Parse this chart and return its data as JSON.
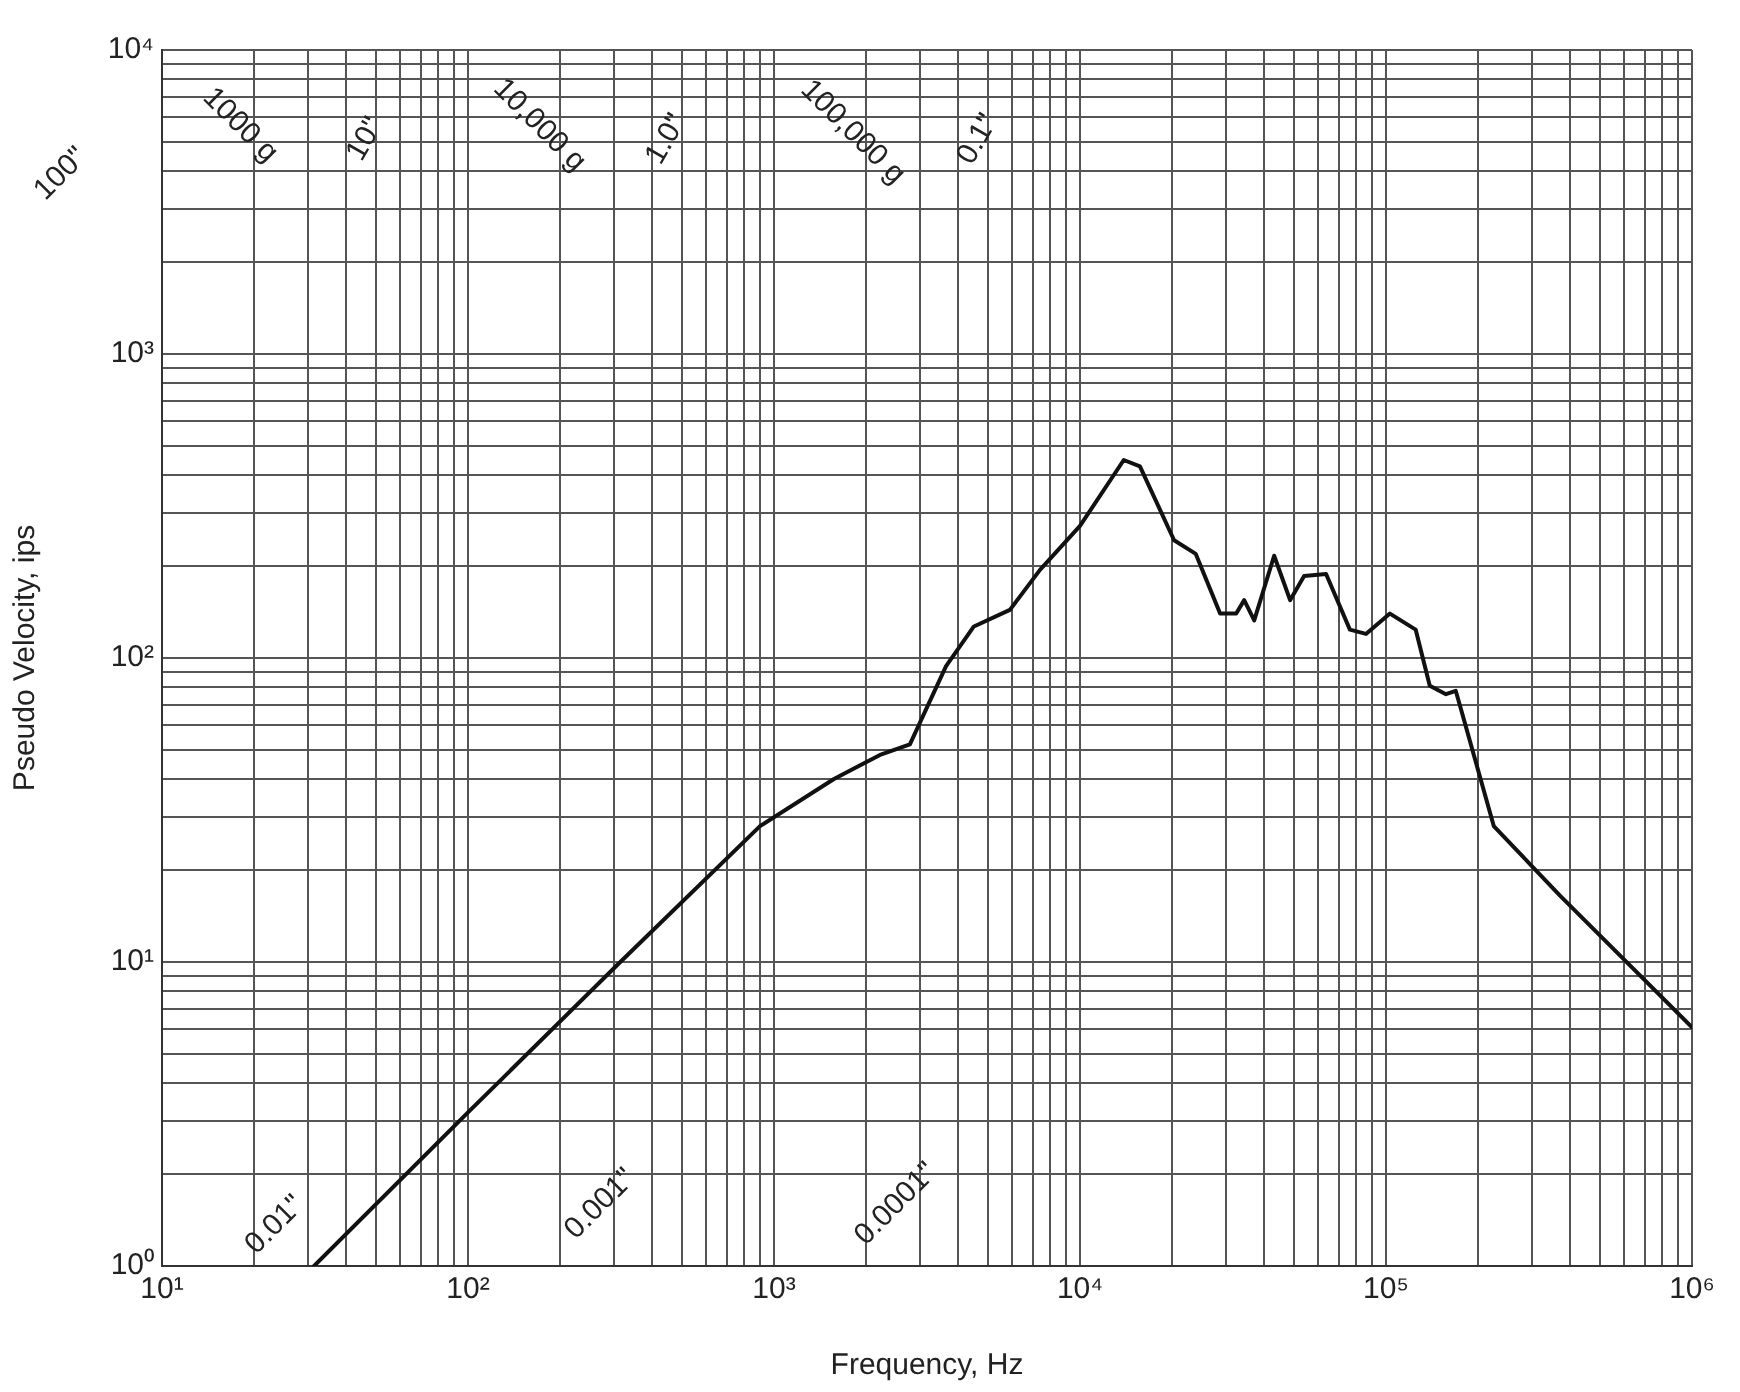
{
  "chart_data": {
    "type": "line",
    "xlabel": "Frequency, Hz",
    "ylabel": "Pseudo Velocity, ips",
    "x": [
      31.4,
      100,
      305,
      900,
      1570,
      2220,
      2780,
      3650,
      4500,
      5900,
      7400,
      10000,
      13900,
      15700,
      20300,
      23900,
      28700,
      32400,
      34400,
      37100,
      43100,
      48600,
      54000,
      63700,
      76200,
      86000,
      103000,
      125000,
      139000,
      157000,
      169000,
      175000,
      225000,
      371000,
      1000000
    ],
    "series": [
      {
        "color": "#111111",
        "values": [
          1,
          3.2,
          9.7,
          28,
          40,
          48,
          52,
          94,
          127,
          144,
          195,
          272,
          448,
          427,
          244,
          220,
          140,
          140,
          155,
          133,
          217,
          155,
          186,
          189,
          124,
          120,
          140,
          124,
          81,
          76,
          78,
          69,
          28,
          16.5,
          6.1
        ]
      }
    ],
    "log": "xy",
    "grid": true,
    "legend": false,
    "marker": "none",
    "line_style": "solid",
    "xlim": [
      10,
      1000000
    ],
    "xticks": [
      {
        "value": 10,
        "label": "10¹"
      },
      {
        "value": 20,
        "label": null
      },
      {
        "value": 30,
        "label": null
      },
      {
        "value": 40,
        "label": null
      },
      {
        "value": 50,
        "label": null
      },
      {
        "value": 60,
        "label": null
      },
      {
        "value": 70,
        "label": null
      },
      {
        "value": 80,
        "label": null
      },
      {
        "value": 90,
        "label": null
      },
      {
        "value": 100,
        "label": "10²"
      },
      {
        "value": 200,
        "label": null
      },
      {
        "value": 300,
        "label": null
      },
      {
        "value": 400,
        "label": null
      },
      {
        "value": 500,
        "label": null
      },
      {
        "value": 600,
        "label": null
      },
      {
        "value": 700,
        "label": null
      },
      {
        "value": 800,
        "label": null
      },
      {
        "value": 900,
        "label": null
      },
      {
        "value": 1000,
        "label": "10³"
      },
      {
        "value": 2000,
        "label": null
      },
      {
        "value": 3000,
        "label": null
      },
      {
        "value": 4000,
        "label": null
      },
      {
        "value": 5000,
        "label": null
      },
      {
        "value": 6000,
        "label": null
      },
      {
        "value": 7000,
        "label": null
      },
      {
        "value": 8000,
        "label": null
      },
      {
        "value": 9000,
        "label": null
      },
      {
        "value": 10000,
        "label": "10⁴"
      },
      {
        "value": 20000,
        "label": null
      },
      {
        "value": 30000,
        "label": null
      },
      {
        "value": 40000,
        "label": null
      },
      {
        "value": 50000,
        "label": null
      },
      {
        "value": 60000,
        "label": null
      },
      {
        "value": 70000,
        "label": null
      },
      {
        "value": 80000,
        "label": null
      },
      {
        "value": 90000,
        "label": null
      },
      {
        "value": 100000,
        "label": "10⁵"
      },
      {
        "value": 200000,
        "label": null
      },
      {
        "value": 300000,
        "label": null
      },
      {
        "value": 400000,
        "label": null
      },
      {
        "value": 500000,
        "label": null
      },
      {
        "value": 600000,
        "label": null
      },
      {
        "value": 700000,
        "label": null
      },
      {
        "value": 800000,
        "label": null
      },
      {
        "value": 900000,
        "label": null
      },
      {
        "value": 1000000,
        "label": "10⁶"
      }
    ],
    "ylim": [
      1,
      10000
    ],
    "yticks": [
      {
        "value": 1,
        "label": "10⁰"
      },
      {
        "value": 2,
        "label": null
      },
      {
        "value": 3,
        "label": null
      },
      {
        "value": 4,
        "label": null
      },
      {
        "value": 5,
        "label": null
      },
      {
        "value": 6,
        "label": null
      },
      {
        "value": 7,
        "label": null
      },
      {
        "value": 8,
        "label": null
      },
      {
        "value": 9,
        "label": null
      },
      {
        "value": 10,
        "label": "10¹"
      },
      {
        "value": 20,
        "label": null
      },
      {
        "value": 30,
        "label": null
      },
      {
        "value": 40,
        "label": null
      },
      {
        "value": 50,
        "label": null
      },
      {
        "value": 60,
        "label": null
      },
      {
        "value": 70,
        "label": null
      },
      {
        "value": 80,
        "label": null
      },
      {
        "value": 90,
        "label": null
      },
      {
        "value": 100,
        "label": "10²"
      },
      {
        "value": 200,
        "label": null
      },
      {
        "value": 300,
        "label": null
      },
      {
        "value": 400,
        "label": null
      },
      {
        "value": 500,
        "label": null
      },
      {
        "value": 600,
        "label": null
      },
      {
        "value": 700,
        "label": null
      },
      {
        "value": 800,
        "label": null
      },
      {
        "value": 900,
        "label": null
      },
      {
        "value": 1000,
        "label": "10³"
      },
      {
        "value": 2000,
        "label": null
      },
      {
        "value": 3000,
        "label": null
      },
      {
        "value": 4000,
        "label": null
      },
      {
        "value": 5000,
        "label": null
      },
      {
        "value": 6000,
        "label": null
      },
      {
        "value": 7000,
        "label": null
      },
      {
        "value": 8000,
        "label": null
      },
      {
        "value": 9000,
        "label": null
      },
      {
        "value": 10000,
        "label": "10⁴"
      }
    ],
    "annotations": [
      "100\"",
      "1000 g",
      "10\"",
      "10,000 g",
      "1.0\"",
      "100,000 g",
      "0.1\"",
      "0.01\"",
      "0.001\"",
      "0.0001\""
    ]
  }
}
